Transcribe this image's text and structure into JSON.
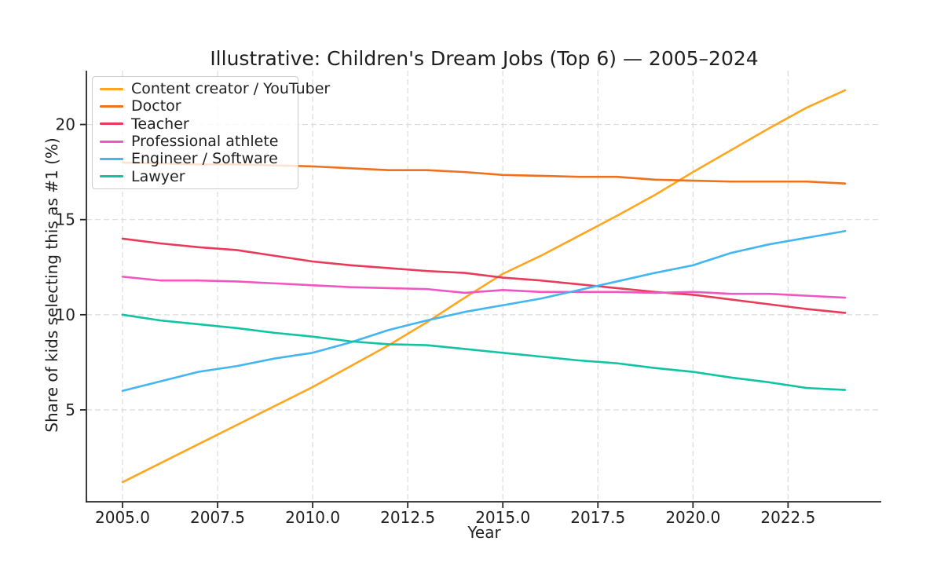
{
  "chart_data": {
    "type": "line",
    "title": "Illustrative: Children's Dream Jobs (Top 6) — 2005–2024",
    "xlabel": "Year",
    "ylabel": "Share of kids selecting this as #1 (%)",
    "x": [
      2005,
      2006,
      2007,
      2008,
      2009,
      2010,
      2011,
      2012,
      2013,
      2014,
      2015,
      2016,
      2017,
      2018,
      2019,
      2020,
      2021,
      2022,
      2023,
      2024
    ],
    "series": [
      {
        "name": "Content creator / YouTuber",
        "color": "#FFA51E",
        "values": [
          1.2,
          2.2,
          3.2,
          4.2,
          5.2,
          6.2,
          7.3,
          8.4,
          9.6,
          10.9,
          12.15,
          13.1,
          14.15,
          15.2,
          16.3,
          17.5,
          18.65,
          19.8,
          20.9,
          21.8
        ]
      },
      {
        "name": "Doctor",
        "color": "#EF701D",
        "values": [
          18.0,
          17.95,
          17.9,
          17.9,
          17.85,
          17.8,
          17.7,
          17.6,
          17.6,
          17.5,
          17.35,
          17.3,
          17.25,
          17.25,
          17.1,
          17.05,
          17.0,
          17.0,
          17.0,
          16.9
        ]
      },
      {
        "name": "Teacher",
        "color": "#E73B59",
        "values": [
          14.0,
          13.75,
          13.55,
          13.4,
          13.1,
          12.8,
          12.6,
          12.45,
          12.3,
          12.2,
          11.95,
          11.8,
          11.6,
          11.4,
          11.2,
          11.05,
          10.8,
          10.55,
          10.3,
          10.1
        ]
      },
      {
        "name": "Professional athlete",
        "color": "#F155C2",
        "values": [
          12.0,
          11.8,
          11.8,
          11.75,
          11.65,
          11.55,
          11.45,
          11.4,
          11.35,
          11.15,
          11.3,
          11.2,
          11.2,
          11.2,
          11.15,
          11.2,
          11.1,
          11.1,
          11.0,
          10.9
        ]
      },
      {
        "name": "Engineer / Software",
        "color": "#41B6F2",
        "values": [
          6.0,
          6.5,
          7.0,
          7.3,
          7.7,
          8.0,
          8.55,
          9.2,
          9.7,
          10.15,
          10.5,
          10.85,
          11.3,
          11.75,
          12.2,
          12.6,
          13.25,
          13.7,
          14.05,
          14.4
        ]
      },
      {
        "name": "Lawyer",
        "color": "#10C3A3",
        "values": [
          10.0,
          9.7,
          9.5,
          9.3,
          9.05,
          8.85,
          8.6,
          8.45,
          8.4,
          8.2,
          8.0,
          7.8,
          7.6,
          7.45,
          7.2,
          7.0,
          6.7,
          6.45,
          6.15,
          6.05
        ]
      }
    ],
    "xlim": [
      2004.05,
      2024.95
    ],
    "ylim": [
      0.17,
      22.83
    ],
    "xticks": [
      2005.0,
      2007.5,
      2010.0,
      2012.5,
      2015.0,
      2017.5,
      2020.0,
      2022.5
    ],
    "xtick_labels": [
      "2005.0",
      "2007.5",
      "2010.0",
      "2012.5",
      "2015.0",
      "2017.5",
      "2020.0",
      "2022.5"
    ],
    "yticks": [
      5,
      10,
      15,
      20
    ],
    "ytick_labels": [
      "5",
      "10",
      "15",
      "20"
    ],
    "grid": true,
    "grid_color": "#DBDBDB",
    "axis_color": "#262626",
    "text_color": "#1F1F1F",
    "legend_position": "upper left",
    "background": "#FFFFFF"
  }
}
